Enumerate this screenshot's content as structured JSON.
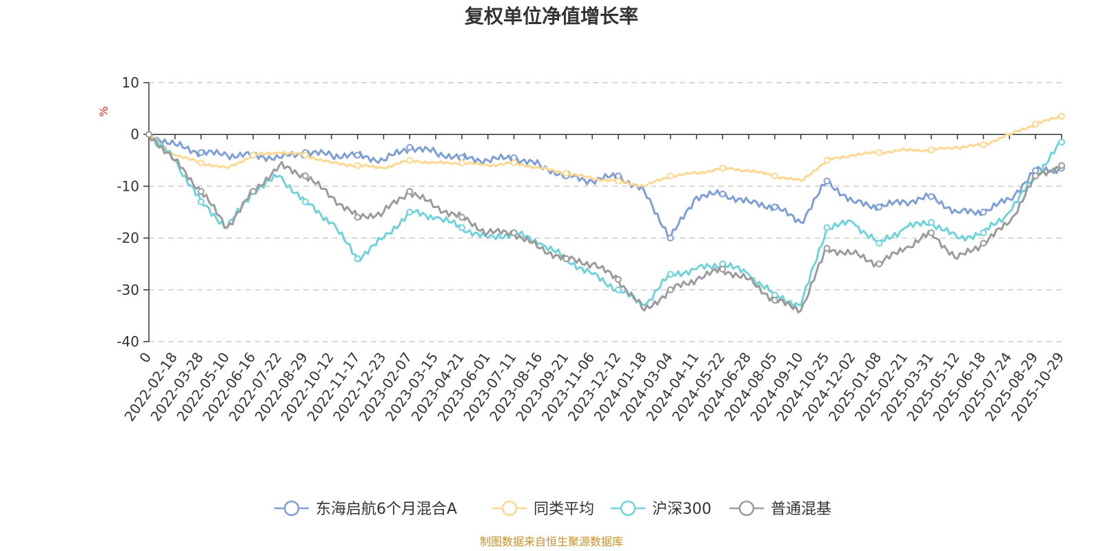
{
  "chart_data": {
    "type": "line",
    "title": "复权单位净值增长率",
    "ylabel": "%",
    "ylim": [
      -40,
      10
    ],
    "yticks": [
      10,
      0,
      -10,
      -20,
      -30,
      -40
    ],
    "x_tick_labels": [
      "0",
      "2022-02-18",
      "2022-03-28",
      "2022-05-10",
      "2022-06-16",
      "2022-07-22",
      "2022-08-29",
      "2022-10-12",
      "2022-11-17",
      "2022-12-23",
      "2023-02-07",
      "2023-03-15",
      "2023-04-21",
      "2023-06-01",
      "2023-07-11",
      "2023-08-16",
      "2023-09-21",
      "2023-11-06",
      "2023-12-12",
      "2024-01-18",
      "2024-03-04",
      "2024-04-11",
      "2024-05-22",
      "2024-06-28",
      "2024-08-05",
      "2024-09-10",
      "2024-10-25",
      "2024-12-02",
      "2025-01-08",
      "2025-02-21",
      "2025-03-31",
      "2025-05-12",
      "2025-06-18",
      "2025-07-24",
      "2025-08-29",
      "2025-10-29"
    ],
    "grid": true,
    "legend_position": "bottom",
    "series": [
      {
        "name": "东海启航6个月混合A",
        "color": "#7f9fd4",
        "values": [
          0,
          -2,
          -3.5,
          -4,
          -4,
          -4.5,
          -3.5,
          -4,
          -4,
          -5,
          -2.5,
          -3.5,
          -4.5,
          -5,
          -4.5,
          -6,
          -8,
          -9,
          -8,
          -11,
          -20,
          -12,
          -11.5,
          -13,
          -14,
          -17,
          -9,
          -13,
          -14,
          -13,
          -12,
          -15,
          -15,
          -12.5,
          -7,
          -6.5
        ]
      },
      {
        "name": "同类平均",
        "color": "#fdd891",
        "values": [
          0,
          -4,
          -5.5,
          -6.5,
          -4,
          -3.5,
          -4,
          -5.5,
          -6,
          -6.5,
          -5,
          -5.5,
          -5.5,
          -6,
          -5.5,
          -6.5,
          -7.5,
          -8.5,
          -9,
          -10,
          -8,
          -7.5,
          -6.5,
          -7,
          -8,
          -9,
          -5,
          -4,
          -3.5,
          -3,
          -3,
          -2.5,
          -2,
          0,
          2,
          3.5
        ]
      },
      {
        "name": "沪深300",
        "color": "#6fd3d9",
        "values": [
          0,
          -5,
          -13,
          -18,
          -11,
          -8,
          -13,
          -17,
          -24,
          -20,
          -15,
          -16,
          -18,
          -20,
          -19,
          -21,
          -24,
          -27,
          -30,
          -33,
          -27,
          -26,
          -25,
          -27,
          -31,
          -33,
          -18,
          -17,
          -21,
          -18,
          -17,
          -20,
          -19,
          -15,
          -8,
          -1.5
        ]
      },
      {
        "name": "普通混基",
        "color": "#9b9b9b",
        "values": [
          0,
          -5,
          -11,
          -18,
          -11,
          -6,
          -8,
          -12,
          -16,
          -15,
          -11,
          -14,
          -16,
          -19,
          -19,
          -22,
          -24,
          -25,
          -28,
          -34,
          -30,
          -28,
          -26,
          -28,
          -32,
          -34,
          -22,
          -23,
          -25,
          -22,
          -19,
          -24,
          -21,
          -17,
          -8,
          -6
        ]
      }
    ],
    "source_note": "制图数据来自恒生聚源数据库"
  }
}
